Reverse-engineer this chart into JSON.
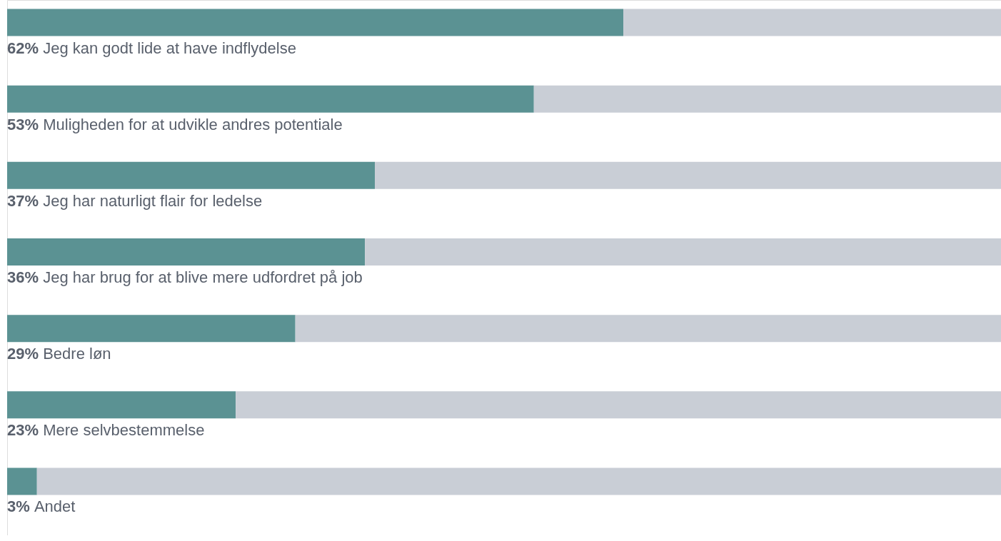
{
  "chart_data": {
    "type": "bar",
    "orientation": "horizontal",
    "stacked": true,
    "categories": [
      "Jeg kan godt lide at have indflydelse",
      "Muligheden for at udvikle andres potentiale",
      "Jeg har naturligt flair for ledelse",
      "Jeg har brug for at blive mere udfordret på job",
      "Bedre løn",
      "Mere selvbestemmelse",
      "Andet"
    ],
    "series": [
      {
        "color": "#5b9293",
        "values": [
          62,
          53,
          37,
          36,
          29,
          23,
          3
        ],
        "value_labels": [
          "62%",
          "53%",
          "37%",
          "36%",
          "29%",
          "23%",
          "3%"
        ]
      },
      {
        "color": "#c9ced6",
        "values": [
          38,
          47,
          63,
          64,
          71,
          77,
          97
        ]
      }
    ],
    "xlim": [
      0,
      100
    ]
  }
}
